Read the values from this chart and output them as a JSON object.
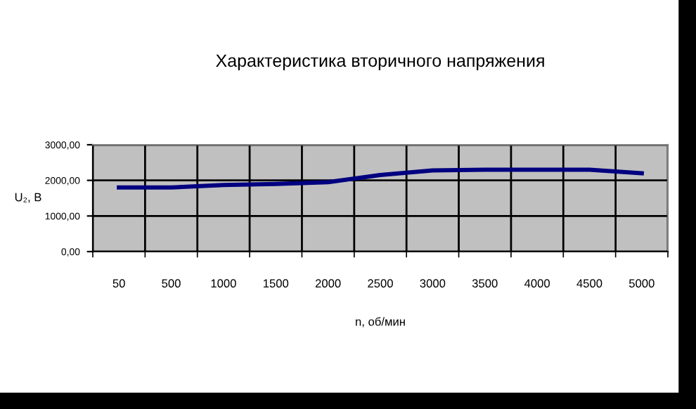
{
  "chart_data": {
    "type": "line",
    "title": "Характеристика вторичного напряжения",
    "xlabel": "n, об/мин",
    "ylabel": "U₂, В",
    "categories": [
      "50",
      "500",
      "1000",
      "1500",
      "2000",
      "2500",
      "3000",
      "3500",
      "4000",
      "4500",
      "5000"
    ],
    "series": [
      {
        "color": "#000080",
        "values": [
          1800,
          1800,
          1870,
          1900,
          1950,
          2150,
          2280,
          2300,
          2300,
          2300,
          2200
        ]
      }
    ],
    "ylim": [
      0,
      3000
    ],
    "yticks": [
      {
        "value": 0,
        "label": "0,00"
      },
      {
        "value": 1000,
        "label": "1000,00"
      },
      {
        "value": 2000,
        "label": "2000,00"
      },
      {
        "value": 3000,
        "label": "3000,00"
      }
    ],
    "grid": true,
    "legend": false,
    "marker": "none",
    "line_style": "solid"
  }
}
